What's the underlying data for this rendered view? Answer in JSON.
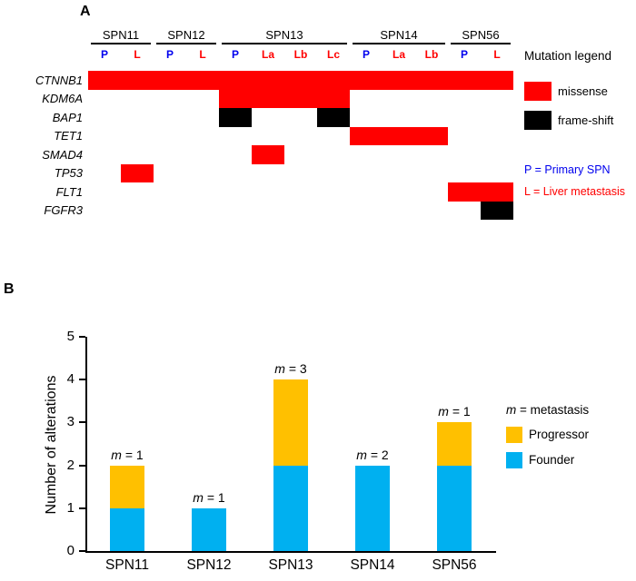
{
  "panelA": {
    "label": "A",
    "legend_title": "Mutation legend",
    "note_primary": "P = Primary SPN",
    "note_metastasis": "L = Liver metastasis",
    "text_colors": {
      "primary": "#0000EE",
      "metastasis": "#FF0000"
    }
  },
  "panelB": {
    "label": "B"
  },
  "chart_data": [
    {
      "type": "heatmap",
      "rows": [
        "CTNNB1",
        "KDM6A",
        "BAP1",
        "TET1",
        "SMAD4",
        "TP53",
        "FLT1",
        "FGFR3"
      ],
      "groups": [
        {
          "name": "SPN11",
          "samples": [
            "P",
            "L"
          ]
        },
        {
          "name": "SPN12",
          "samples": [
            "P",
            "L"
          ]
        },
        {
          "name": "SPN13",
          "samples": [
            "P",
            "La",
            "Lb",
            "Lc"
          ]
        },
        {
          "name": "SPN14",
          "samples": [
            "P",
            "La",
            "Lb"
          ]
        },
        {
          "name": "SPN56",
          "samples": [
            "P",
            "L"
          ]
        }
      ],
      "cell_colors": {
        "missense": "#FF0000",
        "frame-shift": "#000000"
      },
      "legend": [
        {
          "key": "missense",
          "label": "missense"
        },
        {
          "key": "frame-shift",
          "label": "frame-shift"
        }
      ],
      "values": [
        [
          "missense",
          "missense",
          "missense",
          "missense",
          "missense",
          "missense",
          "missense",
          "missense",
          "missense",
          "missense",
          "missense",
          "missense",
          "missense"
        ],
        [
          "",
          "",
          "",
          "",
          "missense",
          "missense",
          "missense",
          "missense",
          "",
          "",
          "",
          "",
          ""
        ],
        [
          "",
          "",
          "",
          "",
          "frame-shift",
          "",
          "",
          "frame-shift",
          "",
          "",
          "",
          "",
          ""
        ],
        [
          "",
          "",
          "",
          "",
          "",
          "",
          "",
          "",
          "missense",
          "missense",
          "missense",
          "",
          ""
        ],
        [
          "",
          "",
          "",
          "",
          "",
          "missense",
          "",
          "",
          "",
          "",
          "",
          "",
          ""
        ],
        [
          "",
          "missense",
          "",
          "",
          "",
          "",
          "",
          "",
          "",
          "",
          "",
          "",
          ""
        ],
        [
          "",
          "",
          "",
          "",
          "",
          "",
          "",
          "",
          "",
          "",
          "",
          "missense",
          "missense"
        ],
        [
          "",
          "",
          "",
          "",
          "",
          "",
          "",
          "",
          "",
          "",
          "",
          "",
          "frame-shift"
        ]
      ]
    },
    {
      "type": "bar",
      "stacked": true,
      "categories": [
        "SPN11",
        "SPN12",
        "SPN13",
        "SPN14",
        "SPN56"
      ],
      "series": [
        {
          "name": "Founder",
          "color": "#00B0F0",
          "values": [
            1,
            1,
            2,
            2,
            2
          ]
        },
        {
          "name": "Progressor",
          "color": "#FFC000",
          "values": [
            1,
            0,
            2,
            0,
            1
          ]
        }
      ],
      "bar_labels": [
        "m = 1",
        "m = 1",
        "m = 3",
        "m = 2",
        "m = 1"
      ],
      "ylabel": "Number of alterations",
      "ylim": [
        0,
        5
      ],
      "yticks": [
        0,
        1,
        2,
        3,
        4,
        5
      ],
      "legend_note": "m = metastasis",
      "legend_position": "right"
    }
  ]
}
